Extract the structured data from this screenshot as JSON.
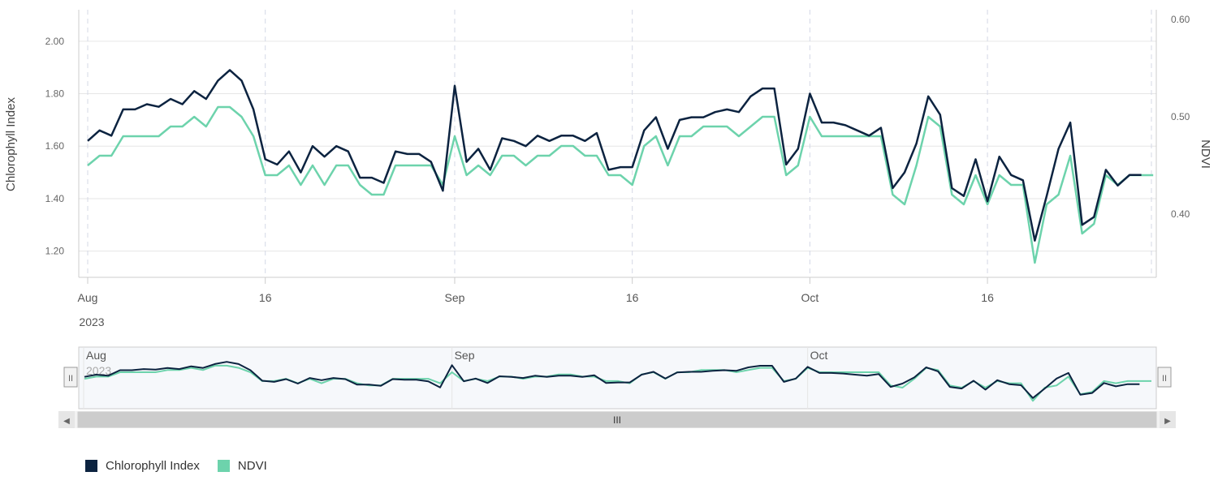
{
  "chart_data": {
    "type": "line",
    "title": "",
    "ylabel_left": "Chlorophyll Index",
    "ylabel_right": "NDVI",
    "ylim_left": [
      1.1,
      2.12
    ],
    "ylim_right": [
      0.335,
      0.61
    ],
    "yticks_left": [
      "1.20",
      "1.40",
      "1.60",
      "1.80",
      "2.00"
    ],
    "yticks_right": [
      "0.40",
      "0.50",
      "0.60"
    ],
    "x_start": "2023-08-01",
    "x_end": "2023-10-31",
    "x_ticks": [
      {
        "day": 0,
        "label": "Aug",
        "sub": "2023"
      },
      {
        "day": 15,
        "label": "16",
        "sub": ""
      },
      {
        "day": 31,
        "label": "Sep",
        "sub": ""
      },
      {
        "day": 46,
        "label": "16",
        "sub": ""
      },
      {
        "day": 61,
        "label": "Oct",
        "sub": ""
      },
      {
        "day": 76,
        "label": "16",
        "sub": ""
      }
    ],
    "navigator_labels": [
      {
        "day": 0,
        "label": "Aug",
        "sub": "2023"
      },
      {
        "day": 31,
        "label": "Sep",
        "sub": ""
      },
      {
        "day": 61,
        "label": "Oct",
        "sub": ""
      }
    ],
    "series": [
      {
        "name": "Chlorophyll Index",
        "color": "#0c2340",
        "axis": "left",
        "x": [
          0,
          1,
          2,
          3,
          4,
          5,
          6,
          7,
          8,
          9,
          10,
          11,
          12,
          13,
          14,
          15,
          16,
          17,
          18,
          19,
          20,
          21,
          22,
          23,
          24,
          25,
          26,
          27,
          28,
          29,
          30,
          31,
          32,
          33,
          34,
          35,
          36,
          37,
          38,
          39,
          40,
          41,
          42,
          43,
          44,
          45,
          46,
          47,
          48,
          49,
          50,
          51,
          52,
          53,
          54,
          55,
          56,
          57,
          58,
          59,
          60,
          61,
          62,
          63,
          64,
          65,
          66,
          67,
          68,
          69,
          70,
          71,
          72,
          73,
          74,
          75,
          76,
          77,
          78,
          79,
          80,
          81,
          82,
          83,
          84,
          85,
          86,
          87,
          88,
          89
        ],
        "values": [
          1.62,
          1.66,
          1.64,
          1.74,
          1.74,
          1.76,
          1.75,
          1.78,
          1.76,
          1.81,
          1.78,
          1.85,
          1.89,
          1.85,
          1.74,
          1.55,
          1.53,
          1.58,
          1.5,
          1.6,
          1.56,
          1.6,
          1.58,
          1.48,
          1.48,
          1.46,
          1.58,
          1.57,
          1.57,
          1.54,
          1.43,
          1.83,
          1.54,
          1.59,
          1.51,
          1.63,
          1.62,
          1.6,
          1.64,
          1.62,
          1.64,
          1.64,
          1.62,
          1.65,
          1.51,
          1.52,
          1.52,
          1.66,
          1.71,
          1.59,
          1.7,
          1.71,
          1.71,
          1.73,
          1.74,
          1.73,
          1.79,
          1.82,
          1.82,
          1.53,
          1.59,
          1.8,
          1.69,
          1.69,
          1.68,
          1.66,
          1.64,
          1.67,
          1.44,
          1.5,
          1.61,
          1.79,
          1.72,
          1.44,
          1.41,
          1.55,
          1.39,
          1.56,
          1.49,
          1.47,
          1.24,
          1.41,
          1.59,
          1.69,
          1.3,
          1.33,
          1.51,
          1.45,
          1.49,
          1.49
        ]
      },
      {
        "name": "NDVI",
        "color": "#6dd3ac",
        "axis": "right",
        "x": [
          0,
          1,
          2,
          3,
          4,
          5,
          6,
          7,
          8,
          9,
          10,
          11,
          12,
          13,
          14,
          15,
          16,
          17,
          18,
          19,
          20,
          21,
          22,
          23,
          24,
          25,
          26,
          27,
          28,
          29,
          30,
          31,
          32,
          33,
          34,
          35,
          36,
          37,
          38,
          39,
          40,
          41,
          42,
          43,
          44,
          45,
          46,
          47,
          48,
          49,
          50,
          51,
          52,
          53,
          54,
          55,
          56,
          57,
          58,
          59,
          60,
          61,
          62,
          63,
          64,
          65,
          66,
          67,
          68,
          69,
          70,
          71,
          72,
          73,
          74,
          75,
          76,
          77,
          78,
          79,
          80,
          81,
          82,
          83,
          84,
          85,
          86,
          87,
          88,
          89,
          90
        ],
        "values": [
          0.45,
          0.46,
          0.46,
          0.48,
          0.48,
          0.48,
          0.48,
          0.49,
          0.49,
          0.5,
          0.49,
          0.51,
          0.51,
          0.5,
          0.48,
          0.44,
          0.44,
          0.45,
          0.43,
          0.45,
          0.43,
          0.45,
          0.45,
          0.43,
          0.42,
          0.42,
          0.45,
          0.45,
          0.45,
          0.45,
          0.43,
          0.48,
          0.44,
          0.45,
          0.44,
          0.46,
          0.46,
          0.45,
          0.46,
          0.46,
          0.47,
          0.47,
          0.46,
          0.46,
          0.44,
          0.44,
          0.43,
          0.47,
          0.48,
          0.45,
          0.48,
          0.48,
          0.49,
          0.49,
          0.49,
          0.48,
          0.49,
          0.5,
          0.5,
          0.44,
          0.45,
          0.5,
          0.48,
          0.48,
          0.48,
          0.48,
          0.48,
          0.48,
          0.42,
          0.41,
          0.45,
          0.5,
          0.49,
          0.42,
          0.41,
          0.44,
          0.41,
          0.44,
          0.43,
          0.43,
          0.35,
          0.41,
          0.42,
          0.46,
          0.38,
          0.39,
          0.44,
          0.43,
          0.44,
          0.44,
          0.44
        ]
      }
    ],
    "legend_position": "bottom-left"
  },
  "navigator": {
    "left_handle": "II",
    "right_handle": "II",
    "scroll_left": "◀",
    "scroll_right": "▶",
    "scroll_grip": "III"
  },
  "colors": {
    "chlorophyll": "#0c2340",
    "ndvi": "#6dd3ac",
    "grid": "#e6e6e6",
    "axis_label": "#666666"
  }
}
